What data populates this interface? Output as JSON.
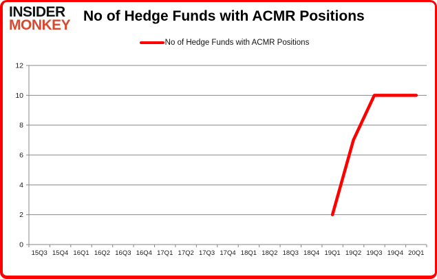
{
  "page": {
    "background": "#ffffff",
    "border_color": "#ff0000"
  },
  "logo": {
    "line1": "INSIDER",
    "line2": "MONKEY",
    "line1_color": "#111111",
    "line2_color": "#d9492f"
  },
  "header": {
    "title": "No of Hedge Funds with ACMR Positions"
  },
  "legend": {
    "label": "No of Hedge Funds with ACMR Positions",
    "line_color": "#ff0000"
  },
  "chart_data": {
    "type": "line",
    "title": "No of Hedge Funds with ACMR Positions",
    "categories": [
      "15Q3",
      "15Q4",
      "16Q1",
      "16Q2",
      "16Q3",
      "16Q4",
      "17Q1",
      "17Q2",
      "17Q3",
      "17Q4",
      "18Q1",
      "18Q2",
      "18Q3",
      "18Q4",
      "19Q1",
      "19Q2",
      "19Q3",
      "19Q4",
      "20Q1"
    ],
    "series": [
      {
        "name": "No of Hedge Funds with ACMR Positions",
        "color": "#ff0000",
        "values": [
          null,
          null,
          null,
          null,
          null,
          null,
          null,
          null,
          null,
          null,
          null,
          null,
          null,
          null,
          2,
          7,
          10,
          10,
          10
        ]
      }
    ],
    "xlabel": "",
    "ylabel": "",
    "ylim": [
      0,
      12
    ],
    "yticks": [
      0,
      2,
      4,
      6,
      8,
      10,
      12
    ],
    "grid": true,
    "gridline_color": "#878787",
    "axis_color": "#878787",
    "tick_label_color": "#1a1a1a",
    "legend_position": "top-center"
  }
}
